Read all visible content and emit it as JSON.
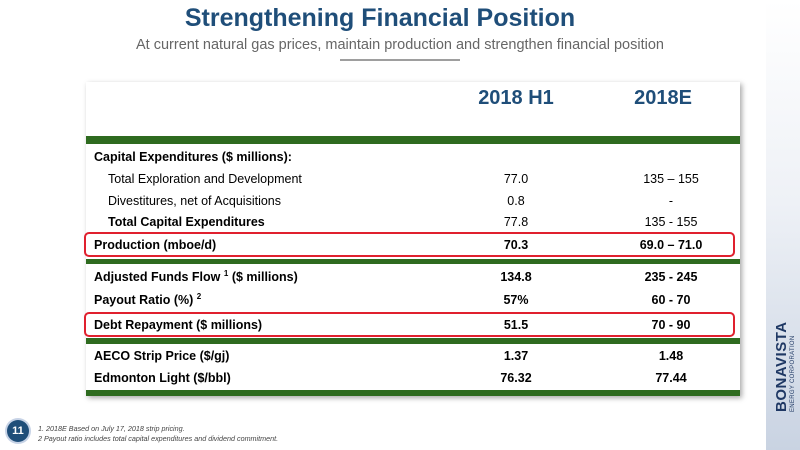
{
  "slide": {
    "title": "Strengthening Financial Position",
    "subtitle": "At current natural gas prices, maintain production and strengthen financial position",
    "page_number": "11"
  },
  "table": {
    "headers": [
      "2018 H1",
      "2018E"
    ],
    "rows": {
      "capex_heading": {
        "label": "Capital Expenditures ($ millions):"
      },
      "expl_dev": {
        "label": "Total Exploration and Development",
        "h1": "77.0",
        "est": "135 – 155"
      },
      "divest": {
        "label": "Divestitures, net of Acquisitions",
        "h1": "0.8",
        "est": "-"
      },
      "total_capex": {
        "label": "Total Capital Expenditures",
        "h1": "77.8",
        "est": "135 - 155"
      },
      "production": {
        "label": "Production (mboe/d)",
        "h1": "70.3",
        "est": "69.0 – 71.0"
      },
      "aff": {
        "label": "Adjusted Funds Flow",
        "sup": "1",
        "label_suffix": "($ millions)",
        "h1": "134.8",
        "est": "235 - 245"
      },
      "payout": {
        "label": "Payout Ratio (%)",
        "sup": "2",
        "h1": "57%",
        "est": "60 - 70"
      },
      "debt": {
        "label": "Debt Repayment ($ millions)",
        "h1": "51.5",
        "est": "70 - 90"
      },
      "aeco": {
        "label": "AECO Strip Price ($/gj)",
        "h1": "1.37",
        "est": "1.48"
      },
      "edmonton": {
        "label": "Edmonton Light ($/bbl)",
        "h1": "76.32",
        "est": "77.44"
      }
    }
  },
  "footnotes": [
    "1. 2018E Based on July 17, 2018 strip pricing.",
    "2 Payout ratio includes total capital expenditures and dividend commitment."
  ],
  "logo": {
    "name": "BONAVISTA",
    "tagline": "ENERGY CORPORATION"
  },
  "colors": {
    "title": "#1f4e79",
    "bar": "#2e6b1f",
    "highlight": "#e0202e"
  }
}
